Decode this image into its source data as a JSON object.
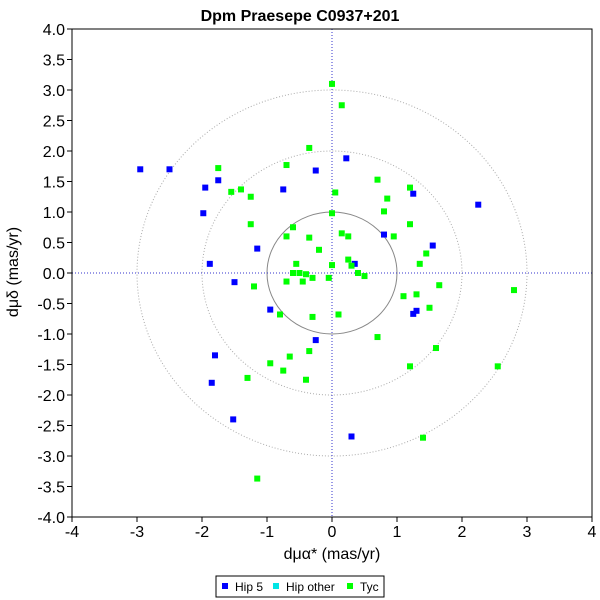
{
  "chart_data": {
    "type": "scatter",
    "title": "Dpm Praesepe  C0937+201",
    "xlabel": "dμα* (mas/yr)",
    "ylabel": "dμδ (mas/yr)",
    "xlim": [
      -4,
      4
    ],
    "ylim": [
      -4,
      3.5
    ],
    "y_top": 4.0,
    "x_ticks": [
      "-4",
      "-3",
      "-2",
      "-1",
      "0",
      "1",
      "2",
      "3",
      "4"
    ],
    "y_ticks": [
      "4.0",
      "3.5",
      "3.0",
      "2.5",
      "2.0",
      "1.5",
      "1.0",
      "0.5",
      "0.0",
      "-0.5",
      "-1.0",
      "-1.5",
      "-2.0",
      "-2.5",
      "-3.0",
      "-3.5",
      "-4.0"
    ],
    "circles": [
      1,
      2,
      3
    ],
    "grid": false,
    "legend_position": "bottom-center",
    "series": [
      {
        "name": "Hip 5",
        "color": "#0000ff",
        "points": [
          [
            -2.95,
            1.7
          ],
          [
            -2.5,
            1.7
          ],
          [
            -1.95,
            1.4
          ],
          [
            -1.75,
            1.52
          ],
          [
            -1.98,
            0.98
          ],
          [
            -1.88,
            0.15
          ],
          [
            -1.8,
            -1.35
          ],
          [
            -1.85,
            -1.8
          ],
          [
            -1.5,
            -0.15
          ],
          [
            -1.15,
            0.4
          ],
          [
            -0.95,
            -0.6
          ],
          [
            -0.75,
            1.37
          ],
          [
            -0.25,
            1.68
          ],
          [
            0.22,
            1.88
          ],
          [
            -0.25,
            -1.1
          ],
          [
            0.3,
            -2.68
          ],
          [
            0.35,
            0.15
          ],
          [
            0.8,
            0.63
          ],
          [
            1.25,
            1.3
          ],
          [
            1.55,
            0.45
          ],
          [
            1.3,
            -0.62
          ],
          [
            1.25,
            -0.67
          ],
          [
            2.25,
            1.12
          ],
          [
            -1.52,
            -2.4
          ]
        ]
      },
      {
        "name": "Hip other",
        "color": "#00e5e5",
        "points": []
      },
      {
        "name": "Tyc",
        "color": "#00ff00",
        "points": [
          [
            0.0,
            3.1
          ],
          [
            0.15,
            2.75
          ],
          [
            -0.35,
            2.05
          ],
          [
            -1.75,
            1.72
          ],
          [
            -0.7,
            1.77
          ],
          [
            -1.55,
            1.33
          ],
          [
            -1.4,
            1.37
          ],
          [
            -1.25,
            1.25
          ],
          [
            0.05,
            1.32
          ],
          [
            0.8,
            1.01
          ],
          [
            0.85,
            1.22
          ],
          [
            0.7,
            1.53
          ],
          [
            1.2,
            1.4
          ],
          [
            -1.25,
            0.8
          ],
          [
            -0.6,
            0.75
          ],
          [
            -0.7,
            0.6
          ],
          [
            -0.35,
            0.58
          ],
          [
            0.0,
            0.98
          ],
          [
            0.15,
            0.65
          ],
          [
            0.25,
            0.6
          ],
          [
            1.2,
            0.8
          ],
          [
            0.95,
            0.6
          ],
          [
            1.45,
            0.32
          ],
          [
            1.35,
            0.15
          ],
          [
            -0.2,
            0.38
          ],
          [
            -0.55,
            0.15
          ],
          [
            -0.6,
            0.0
          ],
          [
            -0.4,
            -0.02
          ],
          [
            -0.5,
            0.0
          ],
          [
            -0.3,
            -0.08
          ],
          [
            -0.7,
            -0.14
          ],
          [
            -0.45,
            -0.14
          ],
          [
            -0.05,
            -0.08
          ],
          [
            0.0,
            0.13
          ],
          [
            0.25,
            0.22
          ],
          [
            0.3,
            0.12
          ],
          [
            0.4,
            0.0
          ],
          [
            0.5,
            -0.05
          ],
          [
            1.1,
            -0.38
          ],
          [
            1.3,
            -0.35
          ],
          [
            1.65,
            -0.2
          ],
          [
            -1.2,
            -0.22
          ],
          [
            -0.8,
            -0.68
          ],
          [
            -0.3,
            -0.72
          ],
          [
            0.1,
            -0.68
          ],
          [
            0.7,
            -1.05
          ],
          [
            -0.35,
            -1.28
          ],
          [
            -0.65,
            -1.37
          ],
          [
            -0.95,
            -1.48
          ],
          [
            -0.75,
            -1.6
          ],
          [
            -1.3,
            -1.72
          ],
          [
            -0.4,
            -1.75
          ],
          [
            1.2,
            -1.53
          ],
          [
            1.6,
            -1.23
          ],
          [
            1.5,
            -0.57
          ],
          [
            2.55,
            -1.53
          ],
          [
            2.8,
            -0.28
          ],
          [
            1.4,
            -2.7
          ],
          [
            -1.15,
            -3.37
          ]
        ]
      }
    ]
  },
  "legend": {
    "items": [
      {
        "label": "Hip 5",
        "color": "#0000ff"
      },
      {
        "label": "Hip other",
        "color": "#00e5e5"
      },
      {
        "label": "Tyc",
        "color": "#00ff00"
      }
    ]
  }
}
